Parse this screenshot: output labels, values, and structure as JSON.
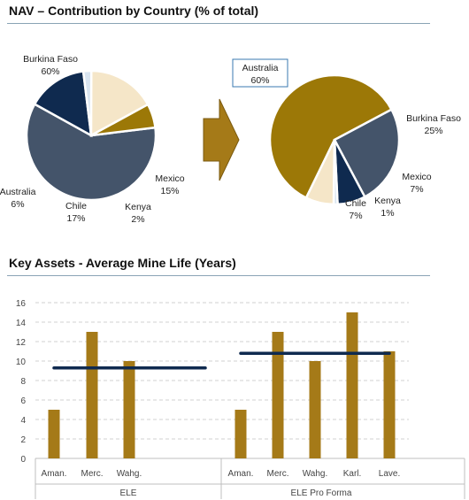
{
  "section1_title": "NAV – Contribution by Country (% of total)",
  "section2_title": "Key Assets - Average Mine Life (Years)",
  "chart_data": [
    {
      "type": "pie",
      "title": "",
      "slices": [
        {
          "label": "Burkina Faso",
          "value": 60,
          "value_label": "60%",
          "color": "#44546a"
        },
        {
          "label": "Mexico",
          "value": 15,
          "value_label": "15%",
          "color": "#0f2a4f"
        },
        {
          "label": "Kenya",
          "value": 2,
          "value_label": "2%",
          "color": "#d9e5f1"
        },
        {
          "label": "Chile",
          "value": 17,
          "value_label": "17%",
          "color": "#f5e6c8"
        },
        {
          "label": "Australia",
          "value": 6,
          "value_label": "6%",
          "color": "#9c7807"
        }
      ]
    },
    {
      "type": "pie",
      "title": "",
      "slices": [
        {
          "label": "Australia",
          "value": 60,
          "value_label": "60%",
          "color": "#9c7807"
        },
        {
          "label": "Burkina Faso",
          "value": 25,
          "value_label": "25%",
          "color": "#44546a"
        },
        {
          "label": "Mexico",
          "value": 7,
          "value_label": "7%",
          "color": "#0f2a4f"
        },
        {
          "label": "Kenya",
          "value": 1,
          "value_label": "1%",
          "color": "#d9e5f1"
        },
        {
          "label": "Chile",
          "value": 7,
          "value_label": "7%",
          "color": "#f5e6c8"
        }
      ]
    },
    {
      "type": "bar",
      "title": "",
      "groups": [
        {
          "name": "ELE",
          "categories": [
            "Aman.",
            "Merc.",
            "Wahg."
          ],
          "values": [
            5,
            13,
            10
          ],
          "average": 9.3
        },
        {
          "name": "ELE Pro Forma",
          "categories": [
            "Aman.",
            "Merc.",
            "Wahg.",
            "Karl.",
            "Lave."
          ],
          "values": [
            5,
            13,
            10,
            15,
            11
          ],
          "average": 10.8
        }
      ],
      "ylim": [
        0,
        16
      ],
      "yticks": [
        0,
        2,
        4,
        6,
        8,
        10,
        12,
        14,
        16
      ],
      "grid": true,
      "bar_color": "#a57a18",
      "average_line_color": "#0f2a4f"
    }
  ],
  "arrow_color": "#a57a18"
}
